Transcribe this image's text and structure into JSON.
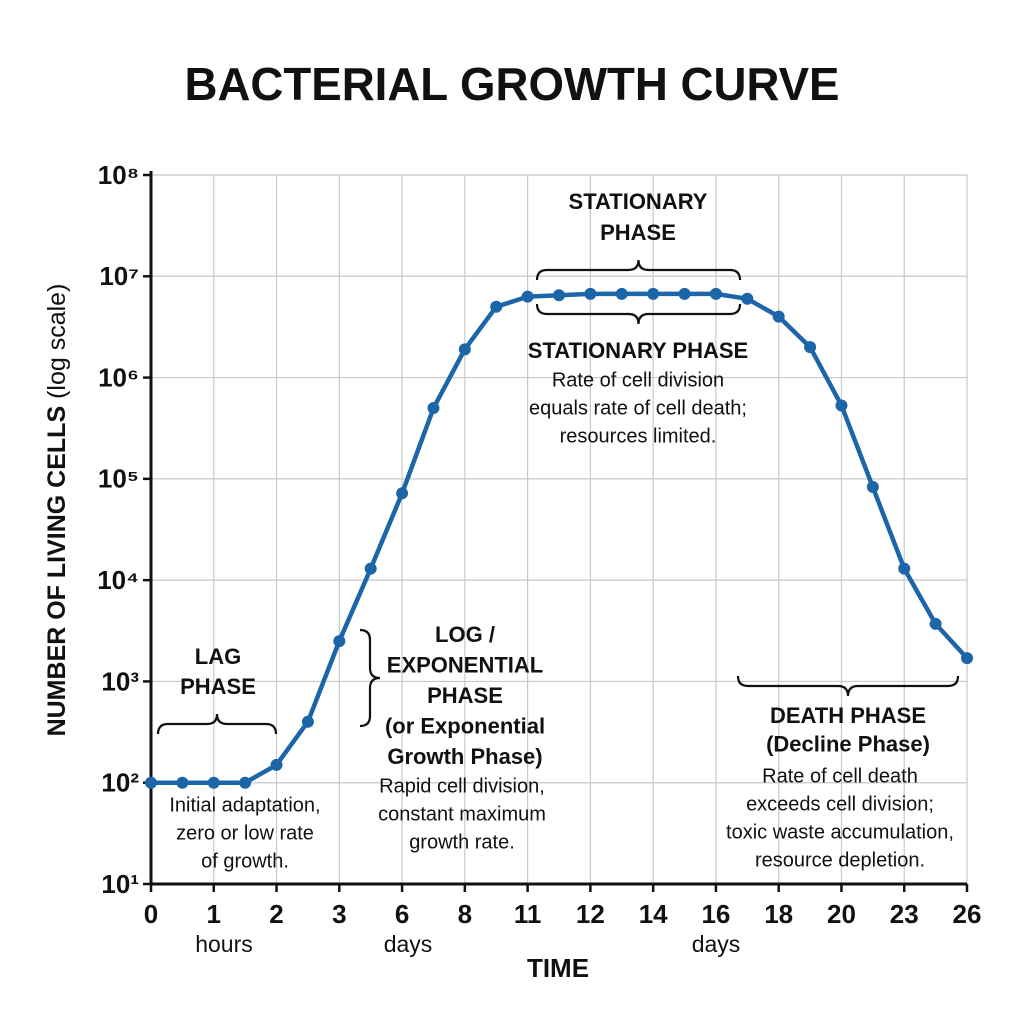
{
  "chart_data": {
    "type": "line",
    "title": "BACTERIAL GROWTH CURVE",
    "y_label": "NUMBER OF LIVING CELLS",
    "y_label_note": "(log scale)",
    "x_label": "TIME",
    "x_units": [
      "hours",
      "days",
      "days"
    ],
    "log_scale": true,
    "grid": true,
    "categories": [
      "0",
      null,
      "1",
      null,
      "2",
      null,
      "3",
      null,
      "6",
      null,
      "8",
      null,
      "11",
      null,
      "12",
      null,
      "14",
      null,
      "16",
      null,
      "18",
      null,
      "20",
      null,
      "23",
      null,
      "26"
    ],
    "series": [
      {
        "name": "Living cells",
        "color": "#1c65a8",
        "values": [
          100,
          100,
          100,
          100,
          150,
          400,
          2500,
          13000,
          72000,
          500000,
          1900000,
          5000000,
          6300000,
          6500000,
          6700000,
          6700000,
          6700000,
          6700000,
          6700000,
          6000000,
          4000000,
          2000000,
          530000,
          83000,
          13000,
          3700,
          1700
        ]
      }
    ],
    "ylim": [
      10,
      100000000
    ],
    "yticks": [
      {
        "value": 10,
        "label": "10¹"
      },
      {
        "value": 100,
        "label": "10²"
      },
      {
        "value": 1000,
        "label": "10³"
      },
      {
        "value": 10000,
        "label": "10⁴"
      },
      {
        "value": 100000,
        "label": "10⁵"
      },
      {
        "value": 1000000,
        "label": "10⁶"
      },
      {
        "value": 10000000,
        "label": "10⁷"
      },
      {
        "value": 100000000,
        "label": "10⁸"
      }
    ],
    "annotations": [
      {
        "heading": [
          "LAG",
          "PHASE"
        ],
        "text": [
          "Initial adaptation,",
          "zero or low rate",
          "of growth."
        ]
      },
      {
        "heading": [
          "LOG /",
          "EXPONENTIAL",
          "PHASE",
          "(or Exponential",
          "Growth Phase)"
        ],
        "text": [
          "Rapid cell division,",
          "constant maximum",
          "growth rate."
        ]
      },
      {
        "heading": [
          "STATIONARY",
          "PHASE"
        ],
        "text": []
      },
      {
        "heading": [
          "STATIONARY PHASE"
        ],
        "text": [
          "Rate of cell division",
          "equals rate of cell death;",
          "resources limited."
        ]
      },
      {
        "heading": [
          "DEATH PHASE",
          "(Decline Phase)"
        ],
        "text": [
          "Rate of cell death",
          "exceeds cell division;",
          "toxic waste accumulation,",
          "resource depletion."
        ]
      }
    ]
  }
}
